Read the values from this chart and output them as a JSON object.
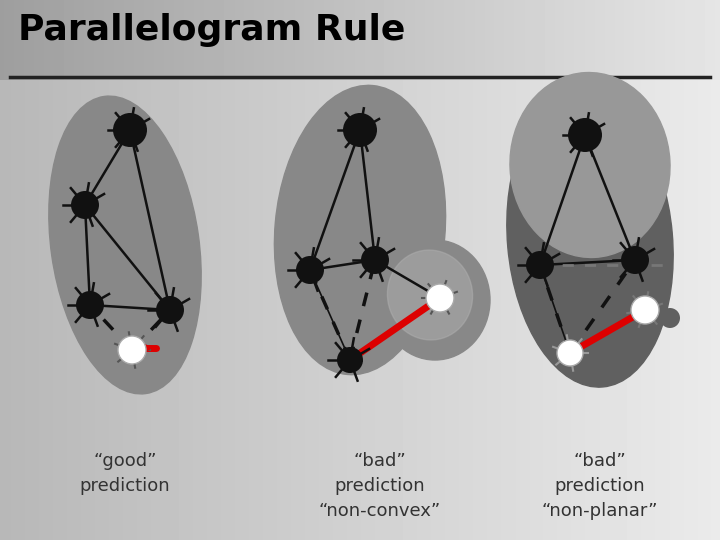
{
  "title": "Parallelogram Rule",
  "title_fontsize": 26,
  "title_fontweight": "bold",
  "blob_color": "#888888",
  "blob_color_dark": "#606060",
  "dot_black": "#111111",
  "dot_white": "#ffffff",
  "dot_gray": "#777777",
  "red_color": "#dd0000",
  "line_color": "#111111",
  "text_color": "#333333",
  "label1": "“good”\nprediction",
  "label2": "“bad”\nprediction\n“non-convex”",
  "label3": "“bad”\nprediction\n“non-planar”"
}
